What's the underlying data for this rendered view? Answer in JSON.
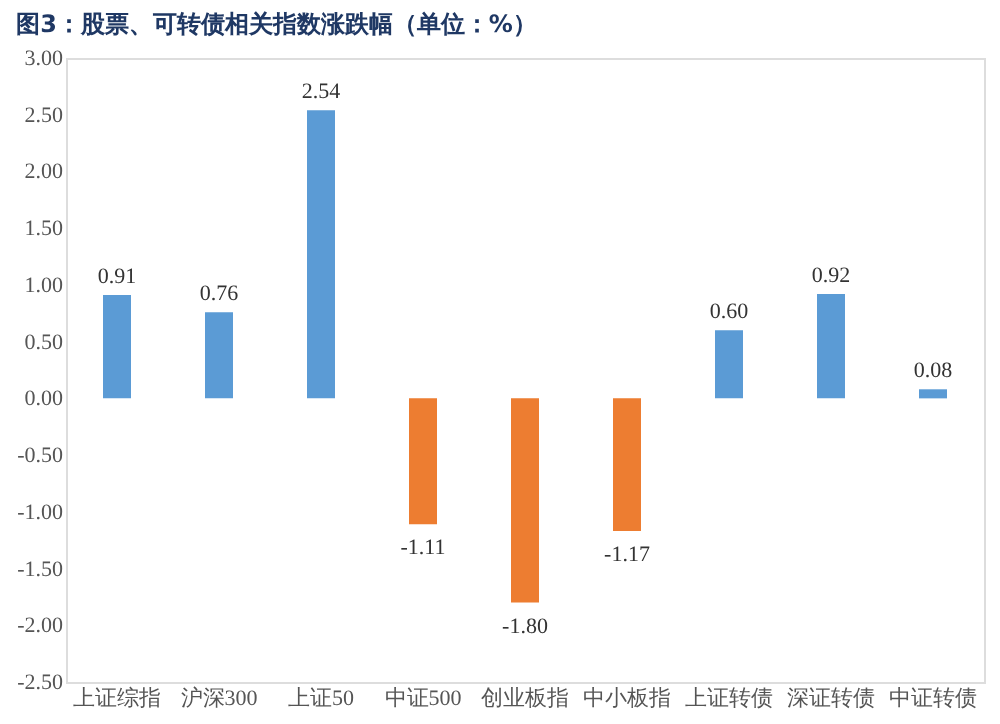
{
  "chart_data": {
    "type": "bar",
    "title": "图3：股票、可转债相关指数涨跌幅（单位：%）",
    "categories": [
      "上证综指",
      "沪深300",
      "上证50",
      "中证500",
      "创业板指",
      "中小板指",
      "上证转债",
      "深证转债",
      "中证转债"
    ],
    "values": [
      0.91,
      0.76,
      2.54,
      -1.11,
      -1.8,
      -1.17,
      0.6,
      0.92,
      0.08
    ],
    "colors": [
      "#5b9bd5",
      "#5b9bd5",
      "#5b9bd5",
      "#ed7d31",
      "#ed7d31",
      "#ed7d31",
      "#5b9bd5",
      "#5b9bd5",
      "#5b9bd5"
    ],
    "ylim": [
      -2.5,
      3.0
    ],
    "yticks": [
      {
        "value": -2.5,
        "label": "-2.50"
      },
      {
        "value": -2.0,
        "label": "-2.00"
      },
      {
        "value": -1.5,
        "label": "-1.50"
      },
      {
        "value": -1.0,
        "label": "-1.00"
      },
      {
        "value": -0.5,
        "label": "-0.50"
      },
      {
        "value": 0.0,
        "label": "0.00"
      },
      {
        "value": 0.5,
        "label": "0.50"
      },
      {
        "value": 1.0,
        "label": "1.00"
      },
      {
        "value": 1.5,
        "label": "1.50"
      },
      {
        "value": 2.0,
        "label": "2.00"
      },
      {
        "value": 2.5,
        "label": "2.50"
      },
      {
        "value": 3.0,
        "label": "3.00"
      }
    ],
    "value_labels": [
      "0.91",
      "0.76",
      "2.54",
      "-1.11",
      "-1.80",
      "-1.17",
      "0.60",
      "0.92",
      "0.08"
    ],
    "grid": false
  }
}
